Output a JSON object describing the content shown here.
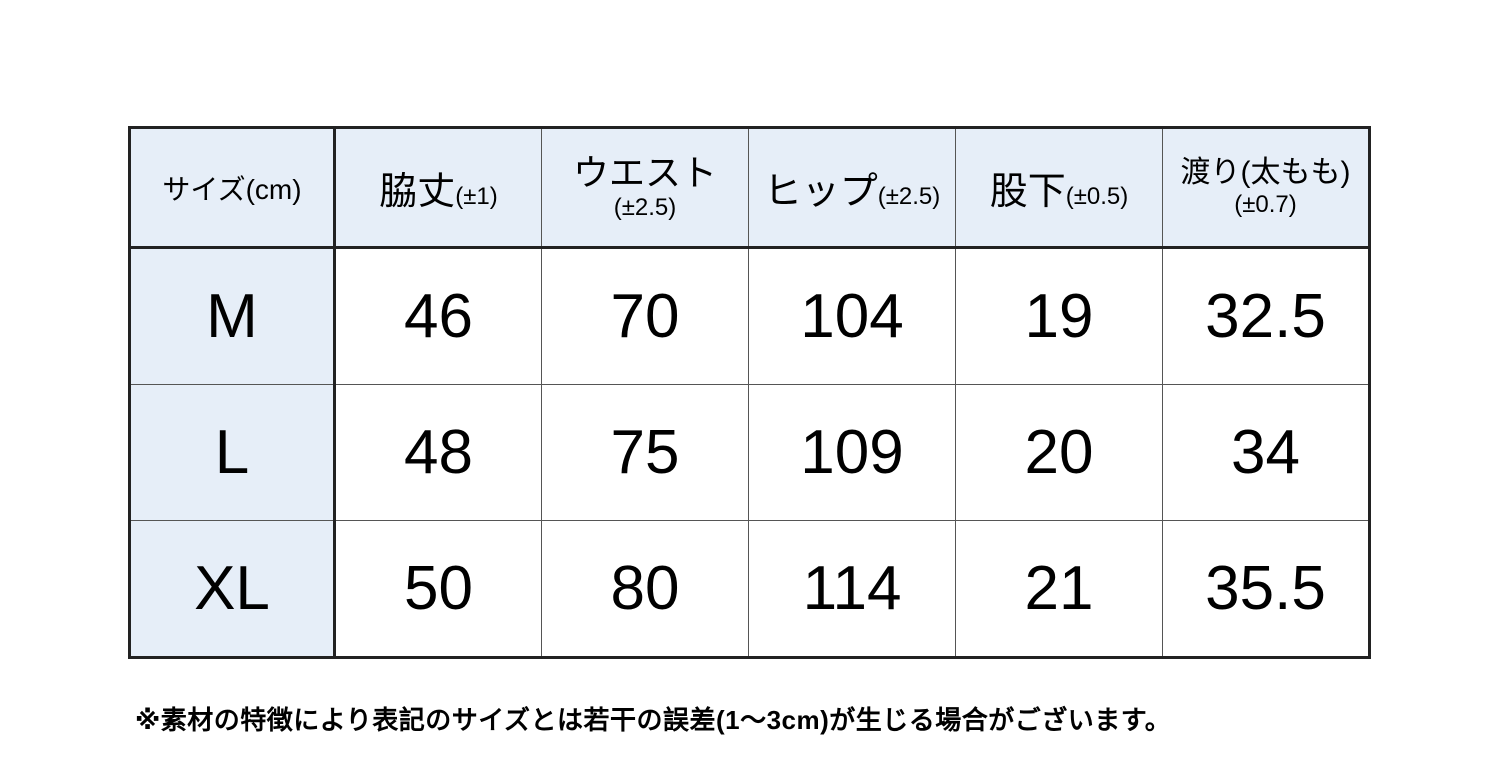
{
  "table": {
    "headers": [
      {
        "main": "サイズ(cm)",
        "tol": ""
      },
      {
        "main": "脇丈",
        "tol": "(±1)"
      },
      {
        "main": "ウエスト",
        "tol": "(±2.5)"
      },
      {
        "main": "ヒップ",
        "tol": "(±2.5)"
      },
      {
        "main": "股下",
        "tol": "(±0.5)"
      },
      {
        "main": "渡り(太もも)",
        "tol": "(±0.7)"
      }
    ],
    "rows": [
      [
        "M",
        "46",
        "70",
        "104",
        "19",
        "32.5"
      ],
      [
        "L",
        "48",
        "75",
        "109",
        "20",
        "34"
      ],
      [
        "XL",
        "50",
        "80",
        "114",
        "21",
        "35.5"
      ]
    ]
  },
  "note": "※素材の特徴により表記のサイズとは若干の誤差(1～3cm)が生じる場合がございます。",
  "colors": {
    "header_bg": "#e6eef8",
    "border": "#222222"
  }
}
